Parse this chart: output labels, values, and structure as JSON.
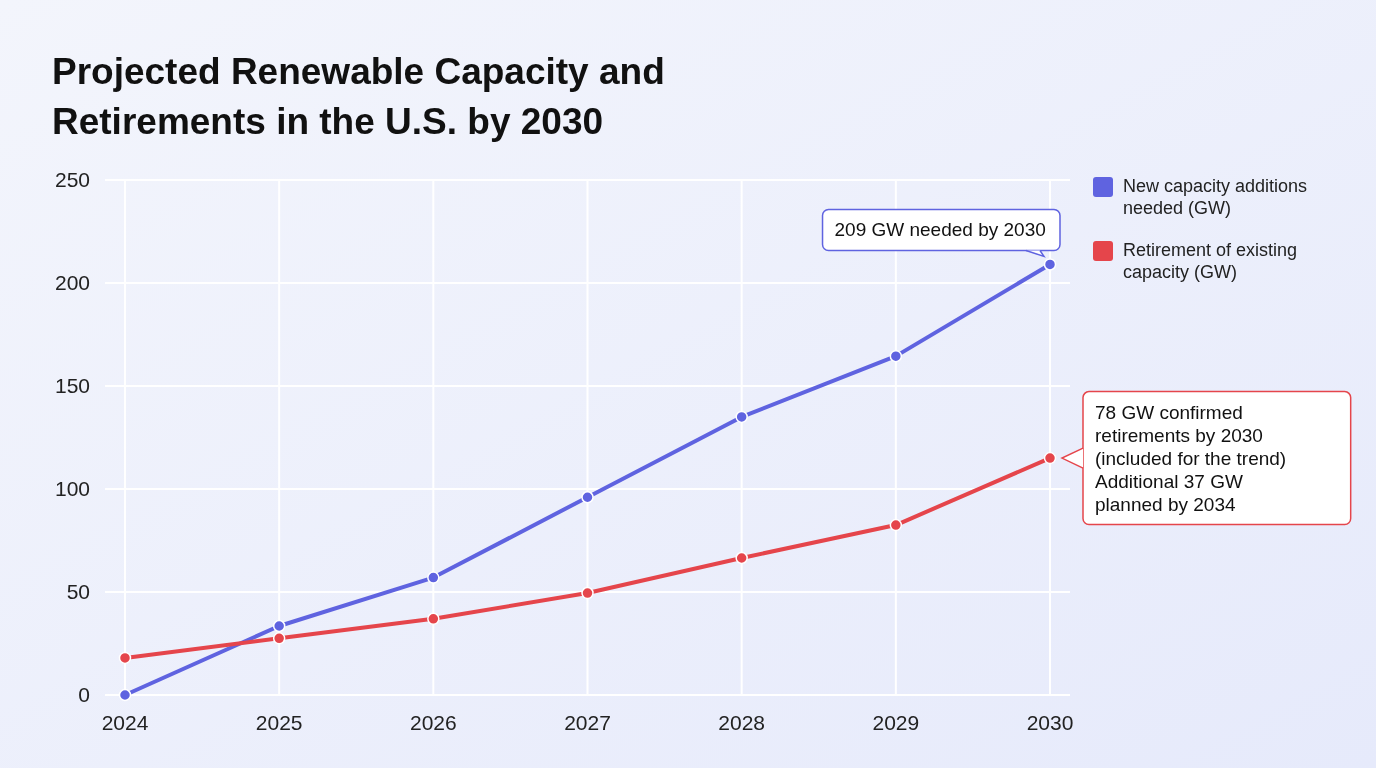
{
  "chart_data": {
    "type": "line",
    "title": "Projected Renewable Capacity and Retirements in the U.S. by 2030",
    "categories": [
      "2024",
      "2025",
      "2026",
      "2027",
      "2028",
      "2029",
      "2030"
    ],
    "series": [
      {
        "name": "New capacity additions needed (GW)",
        "color": "#5f63e0",
        "values": [
          0,
          33.5,
          57,
          96,
          135,
          164.5,
          209
        ]
      },
      {
        "name": "Retirement of existing capacity (GW)",
        "color": "#e5454b",
        "values": [
          18,
          27.5,
          37,
          49.5,
          66.5,
          82.5,
          115
        ]
      }
    ],
    "ylim": [
      0,
      250
    ],
    "yticks": [
      0,
      50,
      100,
      150,
      200,
      250
    ],
    "grid": true,
    "legend": "right",
    "marker": "circle",
    "line_style": "solid",
    "annotations": [
      {
        "text": "209 GW needed by 2030",
        "x": "2030",
        "y": 209
      },
      {
        "text": "78 GW confirmed\nretirements by 2030\n(included for the trend)\nAdditional 37 GW\nplanned by 2034",
        "x": "2030",
        "y": 115
      }
    ]
  }
}
